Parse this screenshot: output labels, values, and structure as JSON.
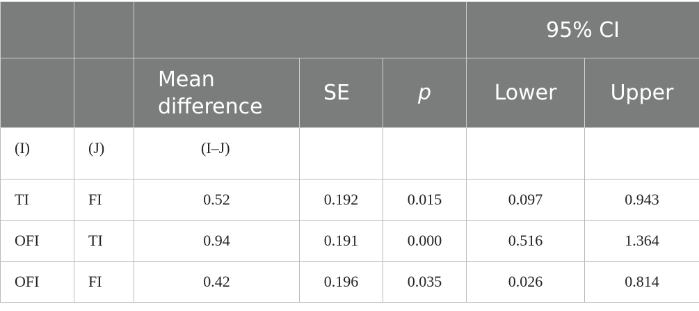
{
  "table": {
    "header": {
      "ci_group": "95% CI",
      "mean_difference": "Mean difference",
      "se": "SE",
      "p": "p",
      "lower": "Lower",
      "upper": "Upper"
    },
    "subheader": {
      "i": "(I)",
      "j": "(J)",
      "ij": "(I–J)"
    },
    "rows": [
      {
        "i": "TI",
        "j": "FI",
        "mean_diff": "0.52",
        "se": "0.192",
        "p": "0.015",
        "lower": "0.097",
        "upper": "0.943"
      },
      {
        "i": "OFI",
        "j": "TI",
        "mean_diff": "0.94",
        "se": "0.191",
        "p": "0.000",
        "lower": "0.516",
        "upper": "1.364"
      },
      {
        "i": "OFI",
        "j": "FI",
        "mean_diff": "0.42",
        "se": "0.196",
        "p": "0.035",
        "lower": "0.026",
        "upper": "0.814"
      }
    ]
  }
}
